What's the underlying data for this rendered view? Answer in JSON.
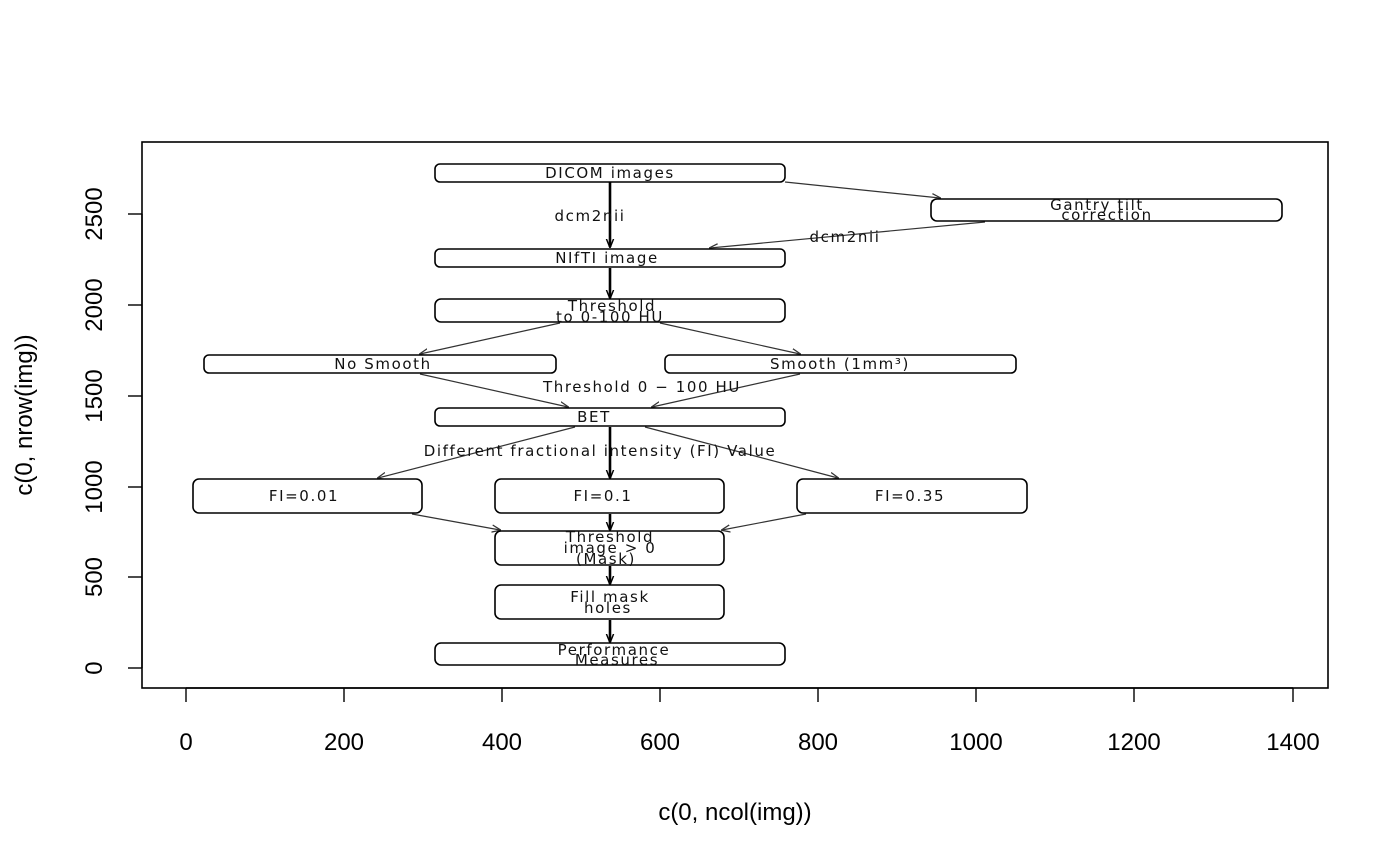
{
  "axes": {
    "xlabel": "c(0, ncol(img))",
    "ylabel": "c(0, nrow(img))",
    "xticks": [
      "0",
      "200",
      "400",
      "600",
      "800",
      "1000",
      "1200",
      "1400"
    ],
    "yticks": [
      "0",
      "500",
      "1000",
      "1500",
      "2000",
      "2500"
    ]
  },
  "nodes": {
    "dicom": "DICOM images",
    "gantry_line1": "Gantry tilt",
    "gantry_line2": "correction",
    "nifti": "NIfTI image",
    "threshold_line1": "Threshold",
    "threshold_line2": "to 0-100 HU",
    "no_smooth": "No Smooth",
    "smooth": "Smooth (1mm³)",
    "bet": "BET",
    "fi_001": "FI=0.01",
    "fi_01": "FI=0.1",
    "fi_035": "FI=0.35",
    "mask_line1": "Threshold",
    "mask_line2": "image > 0",
    "mask_line3": "(Mask)",
    "fill_line1": "Fill mask",
    "fill_line2": "holes",
    "perf_line1": "Performance",
    "perf_line2": "Measures"
  },
  "edges": {
    "dcm2nii_left": "dcm2nii",
    "dcm2nii_right": "dcm2nii",
    "threshold_hu": "Threshold 0 − 100 HU",
    "fi_values": "Different fractional intensity (FI) Value"
  }
}
